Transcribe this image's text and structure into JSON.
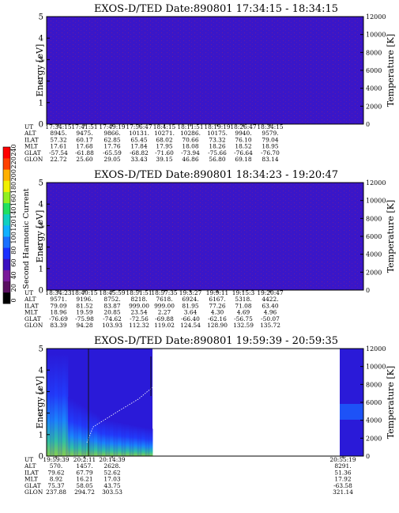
{
  "panels": [
    {
      "title": "EXOS-D/TED   Date:890801  17:34:15 - 18:34:15",
      "ylabel": "Energy [eV]",
      "y2label": "Temperature [K]",
      "ylim": [
        0,
        5
      ],
      "y2lim": [
        0,
        12000
      ],
      "yticks": [
        "0",
        "1",
        "2",
        "3",
        "4",
        "5"
      ],
      "y2ticks": [
        "0",
        "2000",
        "4000",
        "6000",
        "8000",
        "10000",
        "12000"
      ],
      "fill": "uniform",
      "table": {
        "rowlabels": [
          "UT",
          "ALT",
          "ILAT",
          "MLT",
          "GLAT",
          "GLON"
        ],
        "columns": [
          [
            "17:34:15",
            "8945.",
            "57.32",
            "17.61",
            "-57.54",
            "22.72"
          ],
          [
            "17:41:51",
            "9475.",
            "60.17",
            "17.68",
            "-61.88",
            "25.60"
          ],
          [
            "17:49:19",
            "9866.",
            "62.85",
            "17.76",
            "-65.59",
            "29.05"
          ],
          [
            "17:56:47",
            "10131.",
            "65.45",
            "17.84",
            "-68.82",
            "33.43"
          ],
          [
            "18:4:15",
            "10271.",
            "68.02",
            "17.95",
            "-71.60",
            "39.15"
          ],
          [
            "18:11:51",
            "10286.",
            "70.66",
            "18.08",
            "-73.94",
            "46.86"
          ],
          [
            "18:19:19",
            "10175.",
            "73.32",
            "18.26",
            "-75.66",
            "56.80"
          ],
          [
            "18:26:47",
            "9940.",
            "76.10",
            "18.52",
            "-76.64",
            "69.18"
          ],
          [
            "18:34:15",
            "9579.",
            "79.04",
            "18.95",
            "-76.70",
            "83.14"
          ]
        ]
      }
    },
    {
      "title": "EXOS-D/TED   Date:890801  18:34:23 - 19:20:47",
      "ylabel": "Energy [eV]",
      "y2label": "Temperature [K]",
      "ylim": [
        0,
        5
      ],
      "y2lim": [
        0,
        12000
      ],
      "yticks": [
        "0",
        "1",
        "2",
        "3",
        "4",
        "5"
      ],
      "y2ticks": [
        "0",
        "2000",
        "4000",
        "6000",
        "8000",
        "10000",
        "12000"
      ],
      "fill": "uniform",
      "table": {
        "rowlabels": [
          "UT",
          "ALT",
          "ILAT",
          "MLT",
          "GLAT",
          "GLON"
        ],
        "columns": [
          [
            "18:34:23",
            "9571.",
            "79.09",
            "18.96",
            "-76.69",
            "83.39"
          ],
          [
            "18:40:15",
            "9196.",
            "81.52",
            "19.59",
            "-75.98",
            "94.28"
          ],
          [
            "18:45:59",
            "8752.",
            "83.87",
            "20.85",
            "-74.62",
            "103.93"
          ],
          [
            "18:51:51",
            "8218.",
            "999.00",
            "23.54",
            "-72.56",
            "112.32"
          ],
          [
            "18:57:35",
            "7618.",
            "999.00",
            "2.27",
            "-69.88",
            "119.02"
          ],
          [
            "19:3:27",
            "6924.",
            "81.95",
            "3.64",
            "-66.40",
            "124.54"
          ],
          [
            "19:9:11",
            "6167.",
            "77.26",
            "4.30",
            "-62.16",
            "128.90"
          ],
          [
            "19:15:3",
            "5318.",
            "71.08",
            "4.69",
            "-56.75",
            "132.59"
          ],
          [
            "19:20:47",
            "4422.",
            "63.40",
            "4.96",
            "-50.07",
            "135.72"
          ]
        ]
      }
    },
    {
      "title": "EXOS-D/TED   Date:890801  19:59:39 - 20:59:35",
      "ylabel": "Energy [eV]",
      "y2label": "Temperature [K]",
      "ylim": [
        0,
        5
      ],
      "y2lim": [
        0,
        12000
      ],
      "yticks": [
        "0",
        "1",
        "2",
        "3",
        "4",
        "5"
      ],
      "y2ticks": [
        "0",
        "2000",
        "4000",
        "6000",
        "8000",
        "10000",
        "12000"
      ],
      "fill": "partial",
      "table": {
        "rowlabels": [
          "UT",
          "ALT",
          "ILAT",
          "MLT",
          "GLAT",
          "GLON"
        ],
        "columns": [
          [
            "19:59:39",
            "570.",
            "79.62",
            "8.92",
            "75.37",
            "237.88"
          ],
          [
            "20:2:11",
            "1457.",
            "67.79",
            "16.21",
            "58.05",
            "294.72"
          ],
          [
            "20:14:39",
            "2628.",
            "52.62",
            "17.03",
            "43.75",
            "303.53"
          ],
          [
            "20:55:19",
            "8291.",
            "51.36",
            "17.92",
            "-63.58",
            "321.14"
          ]
        ]
      }
    }
  ],
  "colorbar": {
    "label": "Second Harmonic Current",
    "ticks": [
      "0",
      "20",
      "40",
      "60",
      "80",
      "100",
      "120",
      "140",
      "160",
      "180",
      "200",
      "220",
      "240"
    ]
  },
  "chart_data": [
    {
      "type": "heatmap",
      "title": "EXOS-D/TED   Date:890801  17:34:15 - 18:34:15",
      "x": [
        "17:34:15",
        "17:41:51",
        "17:49:19",
        "17:56:47",
        "18:4:15",
        "18:11:51",
        "18:19:19",
        "18:26:47",
        "18:34:15"
      ],
      "ylabel": "Energy [eV]",
      "y2label": "Temperature [K]",
      "ylim": [
        0,
        5
      ],
      "y2lim": [
        0,
        12000
      ],
      "values_description_level": 20
    },
    {
      "type": "heatmap",
      "title": "EXOS-D/TED   Date:890801  18:34:23 - 19:20:47",
      "x": [
        "18:34:23",
        "18:40:15",
        "18:45:59",
        "18:51:51",
        "18:57:35",
        "19:3:27",
        "19:9:11",
        "19:15:3",
        "19:20:47"
      ],
      "ylabel": "Energy [eV]",
      "y2label": "Temperature [K]",
      "ylim": [
        0,
        5
      ],
      "y2lim": [
        0,
        12000
      ],
      "values_description_level": 20
    },
    {
      "type": "heatmap",
      "title": "EXOS-D/TED   Date:890801  19:59:39 - 20:59:35",
      "x": [
        "19:59:39",
        "20:2:11",
        "20:14:39",
        "20:55:19"
      ],
      "ylabel": "Energy [eV]",
      "y2label": "Temperature [K]",
      "ylim": [
        0,
        5
      ],
      "y2lim": [
        0,
        12000
      ]
    }
  ]
}
